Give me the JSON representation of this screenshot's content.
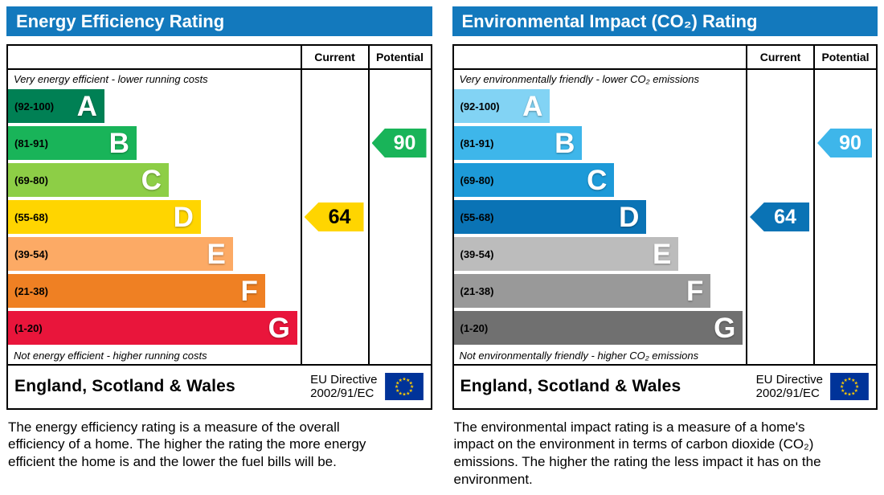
{
  "colors": {
    "header_bg": "#1379bd",
    "header_text": "#ffffff",
    "border": "#000000",
    "flag_bg": "#003399",
    "flag_star": "#ffcc00"
  },
  "chart_data": [
    {
      "type": "bar",
      "title": "Energy Efficiency Rating",
      "columns": [
        "Current",
        "Potential"
      ],
      "top_note": "Very energy efficient - lower running costs",
      "bottom_note": "Not energy efficient - higher running costs",
      "bands": [
        {
          "label": "A",
          "range": "(92-100)",
          "color": "#008054",
          "width_pct": 33
        },
        {
          "label": "B",
          "range": "(81-91)",
          "color": "#19b459",
          "width_pct": 44
        },
        {
          "label": "C",
          "range": "(69-80)",
          "color": "#8dce46",
          "width_pct": 55
        },
        {
          "label": "D",
          "range": "(55-68)",
          "color": "#ffd500",
          "width_pct": 66
        },
        {
          "label": "E",
          "range": "(39-54)",
          "color": "#fcaa65",
          "width_pct": 77
        },
        {
          "label": "F",
          "range": "(21-38)",
          "color": "#ef8023",
          "width_pct": 88
        },
        {
          "label": "G",
          "range": "(1-20)",
          "color": "#e9153b",
          "width_pct": 99
        }
      ],
      "current": {
        "value": 64,
        "band": "D",
        "color": "#ffd500",
        "text_color": "#000000"
      },
      "potential": {
        "value": 90,
        "band": "B",
        "color": "#19b459",
        "text_color": "#ffffff"
      },
      "footer": {
        "region": "England, Scotland & Wales",
        "directive_line1": "EU Directive",
        "directive_line2": "2002/91/EC"
      },
      "description": "The energy efficiency rating is a measure of the overall efficiency of a home. The higher the rating the more energy efficient the home is and the lower the fuel bills will be."
    },
    {
      "type": "bar",
      "title": "Environmental Impact (CO₂) Rating",
      "columns": [
        "Current",
        "Potential"
      ],
      "top_note": "Very environmentally friendly - lower CO₂ emissions",
      "bottom_note": "Not environmentally friendly - higher CO₂ emissions",
      "bands": [
        {
          "label": "A",
          "range": "(92-100)",
          "color": "#82d3f4",
          "width_pct": 33
        },
        {
          "label": "B",
          "range": "(81-91)",
          "color": "#3eb6ea",
          "width_pct": 44
        },
        {
          "label": "C",
          "range": "(69-80)",
          "color": "#1d9ad8",
          "width_pct": 55
        },
        {
          "label": "D",
          "range": "(55-68)",
          "color": "#0a73b5",
          "width_pct": 66
        },
        {
          "label": "E",
          "range": "(39-54)",
          "color": "#bcbcbc",
          "width_pct": 77
        },
        {
          "label": "F",
          "range": "(21-38)",
          "color": "#999999",
          "width_pct": 88
        },
        {
          "label": "G",
          "range": "(1-20)",
          "color": "#707070",
          "width_pct": 99
        }
      ],
      "current": {
        "value": 64,
        "band": "D",
        "color": "#0a73b5",
        "text_color": "#ffffff"
      },
      "potential": {
        "value": 90,
        "band": "B",
        "color": "#3eb6ea",
        "text_color": "#ffffff"
      },
      "footer": {
        "region": "England, Scotland & Wales",
        "directive_line1": "EU Directive",
        "directive_line2": "2002/91/EC"
      },
      "description": "The environmental impact rating is a measure of a home's impact on the environment in terms of carbon dioxide (CO₂) emissions. The higher the rating the less impact it has on the environment."
    }
  ]
}
